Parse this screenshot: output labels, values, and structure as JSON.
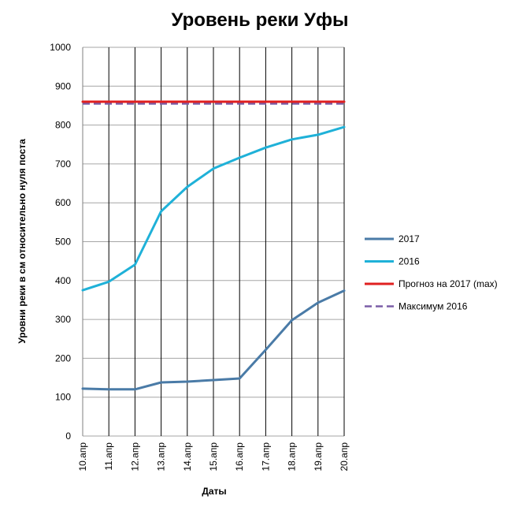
{
  "chart_data": {
    "type": "line",
    "title": "Уровень реки Уфы",
    "xlabel": "Даты",
    "ylabel": "Уровни реки в см относительно нуля поста",
    "ylim": [
      0,
      1000
    ],
    "yticks": [
      "0",
      "100",
      "200",
      "300",
      "400",
      "500",
      "600",
      "700",
      "800",
      "900",
      "1000"
    ],
    "categories": [
      "10.апр",
      "11.апр",
      "12.апр",
      "13.апр",
      "14.апр",
      "15.апр",
      "16.апр",
      "17.апр",
      "18.апр",
      "19.апр",
      "20.апр"
    ],
    "grid": "horizontal and vertical",
    "legend_position": "right",
    "series": [
      {
        "name": "2017",
        "color": "#4a7ba7",
        "style": "solid",
        "values": [
          122,
          120,
          120,
          138,
          140,
          144,
          148,
          222,
          298,
          343,
          374
        ]
      },
      {
        "name": "2016",
        "color": "#1fb1d8",
        "style": "solid",
        "values": [
          375,
          397,
          441,
          578,
          641,
          688,
          716,
          742,
          763,
          775,
          795
        ]
      },
      {
        "name": "Прогноз на 2017  (max)",
        "color": "#e02020",
        "style": "solid",
        "values": [
          860,
          860,
          860,
          860,
          860,
          860,
          860,
          860,
          860,
          860,
          860
        ]
      },
      {
        "name": "Максимум  2016",
        "color": "#7b5ea7",
        "style": "dashed",
        "values": [
          855,
          855,
          855,
          855,
          855,
          855,
          855,
          855,
          855,
          855,
          855
        ]
      }
    ]
  }
}
